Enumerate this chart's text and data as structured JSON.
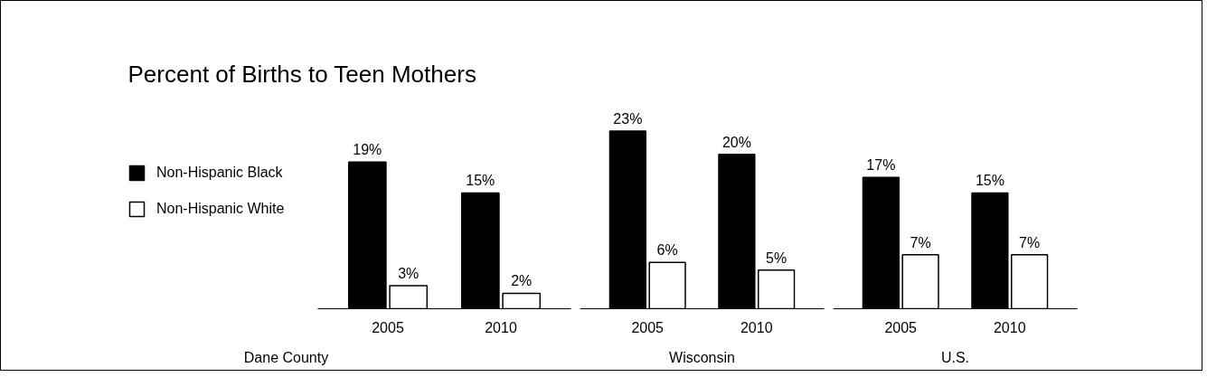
{
  "chart_data": [
    {
      "type": "bar",
      "title": "Percent of Births to Teen Mothers",
      "xlabel": "Dane County",
      "categories": [
        "2005",
        "2010"
      ],
      "legend": "left",
      "grid": false,
      "tick_labels": "x",
      "series": [
        {
          "name": "Non-Hispanic Black",
          "color": "#000000",
          "values": [
            19,
            15
          ],
          "value_labels": [
            "19%",
            "15%"
          ]
        },
        {
          "name": "Non-Hispanic White",
          "color": "#ffffff",
          "values": [
            3,
            2
          ],
          "value_labels": [
            "3%",
            "2%"
          ]
        }
      ]
    },
    {
      "type": "bar",
      "xlabel": "Wisconsin",
      "categories": [
        "2005",
        "2010"
      ],
      "grid": false,
      "tick_labels": "x",
      "series": [
        {
          "color": "#000000",
          "values": [
            23,
            20
          ],
          "value_labels": [
            "23%",
            "20%"
          ]
        },
        {
          "color": "#ffffff",
          "values": [
            6,
            5
          ],
          "value_labels": [
            "6%",
            "5%"
          ]
        }
      ]
    },
    {
      "type": "bar",
      "xlabel": "U.S.",
      "categories": [
        "2005",
        "2010"
      ],
      "grid": false,
      "tick_labels": "x",
      "series": [
        {
          "color": "#000000",
          "values": [
            17,
            15
          ],
          "value_labels": [
            "17%",
            "15%"
          ]
        },
        {
          "color": "#ffffff",
          "values": [
            7,
            7
          ],
          "value_labels": [
            "7%",
            "7%"
          ]
        }
      ]
    }
  ]
}
